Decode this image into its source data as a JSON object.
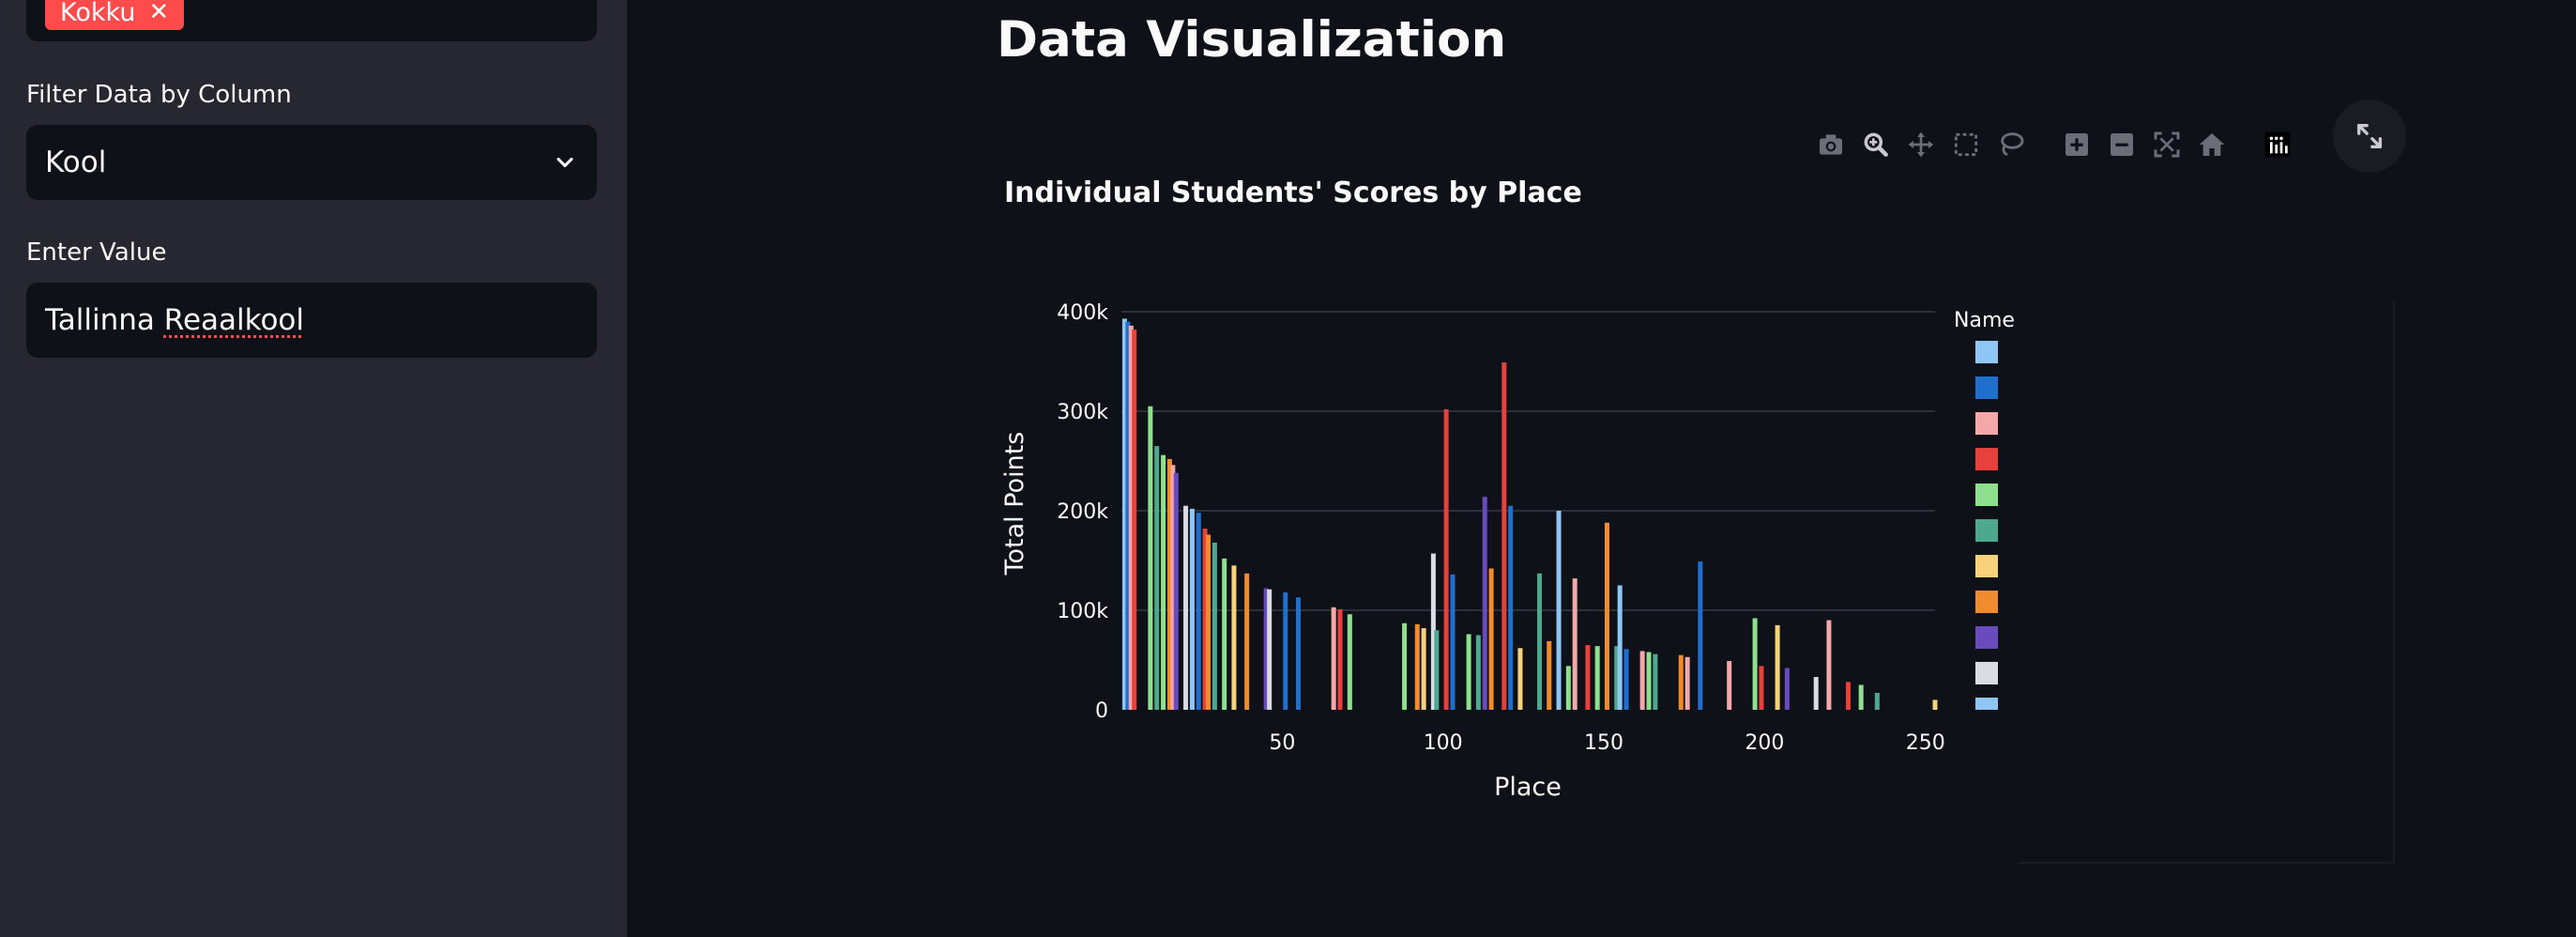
{
  "sidebar": {
    "multiselect_tag": "Kokku",
    "filter_label": "Filter Data by Column",
    "filter_value": "Kool",
    "enter_value_label": "Enter Value",
    "value_word1": "Tallinna",
    "value_word2": "Reaalkool"
  },
  "main": {
    "page_title": "Data Visualization"
  },
  "modebar_icons": [
    "camera-icon",
    "zoom-icon",
    "pan-icon",
    "box-select-icon",
    "lasso-icon",
    "zoom-in-icon",
    "zoom-out-icon",
    "autoscale-icon",
    "reset-axes-icon",
    "plotly-logo-icon"
  ],
  "colors": {
    "background": "#0e1117",
    "sidebar": "#262730",
    "accent": "#ff4b4b",
    "palette": [
      "#8ec7f5",
      "#1f6fcf",
      "#f4a8a8",
      "#e8403c",
      "#8ee08e",
      "#4ea88e",
      "#f7d27a",
      "#f08c2e",
      "#6a4bbd",
      "#d9dce2",
      "#8ec7f5"
    ]
  },
  "chart_data": {
    "type": "bar",
    "title": "Individual Students' Scores by Place",
    "xlabel": "Place",
    "ylabel": "Total Points",
    "xlim": [
      0,
      253
    ],
    "ylim": [
      0,
      400000
    ],
    "xticks": [
      50,
      100,
      150,
      200,
      250
    ],
    "xtick_labels": [
      "50",
      "100",
      "150",
      "200",
      "250"
    ],
    "yticks": [
      0,
      100000,
      200000,
      300000,
      400000
    ],
    "ytick_labels": [
      "0",
      "100k",
      "200k",
      "300k",
      "400k"
    ],
    "grid": true,
    "legend_title": "Name",
    "legend_placement": "right",
    "bars": [
      {
        "x": 1,
        "y": 393000,
        "c": 0
      },
      {
        "x": 2,
        "y": 390000,
        "c": 1
      },
      {
        "x": 3,
        "y": 386000,
        "c": 2
      },
      {
        "x": 4,
        "y": 382000,
        "c": 3
      },
      {
        "x": 9,
        "y": 305000,
        "c": 4
      },
      {
        "x": 11,
        "y": 265000,
        "c": 5
      },
      {
        "x": 13,
        "y": 256000,
        "c": 4
      },
      {
        "x": 15,
        "y": 252000,
        "c": 7
      },
      {
        "x": 16,
        "y": 246000,
        "c": 2
      },
      {
        "x": 17,
        "y": 238000,
        "c": 8
      },
      {
        "x": 20,
        "y": 205000,
        "c": 9
      },
      {
        "x": 22,
        "y": 202000,
        "c": 0
      },
      {
        "x": 24,
        "y": 198000,
        "c": 1
      },
      {
        "x": 26,
        "y": 182000,
        "c": 3
      },
      {
        "x": 27,
        "y": 176000,
        "c": 7
      },
      {
        "x": 29,
        "y": 168000,
        "c": 5
      },
      {
        "x": 32,
        "y": 152000,
        "c": 4
      },
      {
        "x": 35,
        "y": 145000,
        "c": 6
      },
      {
        "x": 39,
        "y": 137000,
        "c": 7
      },
      {
        "x": 45,
        "y": 122000,
        "c": 8
      },
      {
        "x": 46,
        "y": 121000,
        "c": 9
      },
      {
        "x": 51,
        "y": 118000,
        "c": 1
      },
      {
        "x": 55,
        "y": 113000,
        "c": 1
      },
      {
        "x": 66,
        "y": 103000,
        "c": 2
      },
      {
        "x": 68,
        "y": 101000,
        "c": 3
      },
      {
        "x": 71,
        "y": 96000,
        "c": 4
      },
      {
        "x": 88,
        "y": 87000,
        "c": 4
      },
      {
        "x": 92,
        "y": 86000,
        "c": 7
      },
      {
        "x": 94,
        "y": 82000,
        "c": 6
      },
      {
        "x": 97,
        "y": 157000,
        "c": 9
      },
      {
        "x": 98,
        "y": 80000,
        "c": 5
      },
      {
        "x": 101,
        "y": 302000,
        "c": 3
      },
      {
        "x": 103,
        "y": 136000,
        "c": 1
      },
      {
        "x": 108,
        "y": 76000,
        "c": 4
      },
      {
        "x": 111,
        "y": 75000,
        "c": 5
      },
      {
        "x": 113,
        "y": 214000,
        "c": 8
      },
      {
        "x": 115,
        "y": 142000,
        "c": 7
      },
      {
        "x": 119,
        "y": 349000,
        "c": 3
      },
      {
        "x": 121,
        "y": 205000,
        "c": 1
      },
      {
        "x": 124,
        "y": 62000,
        "c": 6
      },
      {
        "x": 130,
        "y": 137000,
        "c": 5
      },
      {
        "x": 133,
        "y": 69000,
        "c": 7
      },
      {
        "x": 136,
        "y": 200000,
        "c": 0
      },
      {
        "x": 139,
        "y": 44000,
        "c": 4
      },
      {
        "x": 141,
        "y": 132000,
        "c": 2
      },
      {
        "x": 145,
        "y": 65000,
        "c": 3
      },
      {
        "x": 148,
        "y": 64000,
        "c": 4
      },
      {
        "x": 151,
        "y": 188000,
        "c": 7
      },
      {
        "x": 154,
        "y": 64000,
        "c": 5
      },
      {
        "x": 155,
        "y": 125000,
        "c": 0
      },
      {
        "x": 157,
        "y": 61000,
        "c": 1
      },
      {
        "x": 162,
        "y": 59000,
        "c": 2
      },
      {
        "x": 164,
        "y": 58000,
        "c": 4
      },
      {
        "x": 166,
        "y": 56000,
        "c": 5
      },
      {
        "x": 174,
        "y": 55000,
        "c": 7
      },
      {
        "x": 176,
        "y": 53000,
        "c": 2
      },
      {
        "x": 180,
        "y": 149000,
        "c": 1
      },
      {
        "x": 189,
        "y": 49000,
        "c": 2
      },
      {
        "x": 197,
        "y": 92000,
        "c": 4
      },
      {
        "x": 199,
        "y": 44000,
        "c": 3
      },
      {
        "x": 204,
        "y": 85000,
        "c": 6
      },
      {
        "x": 207,
        "y": 42000,
        "c": 8
      },
      {
        "x": 216,
        "y": 33000,
        "c": 9
      },
      {
        "x": 220,
        "y": 90000,
        "c": 2
      },
      {
        "x": 226,
        "y": 28000,
        "c": 3
      },
      {
        "x": 230,
        "y": 25000,
        "c": 4
      },
      {
        "x": 235,
        "y": 17000,
        "c": 5
      },
      {
        "x": 253,
        "y": 10000,
        "c": 6
      }
    ]
  }
}
